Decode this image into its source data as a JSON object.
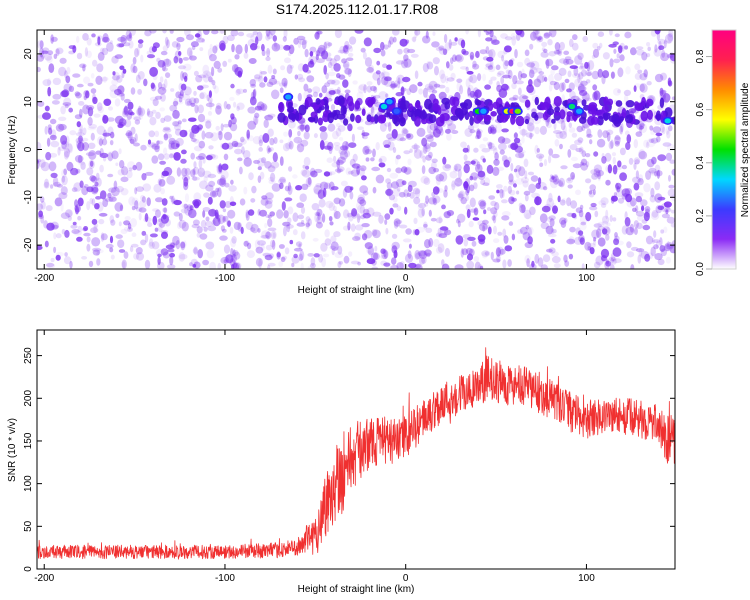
{
  "page": {
    "title": "S174.2025.112.01.17.R08"
  },
  "colors": {
    "heatmap_base": "#7b2ff0",
    "snr_line": "#f03030",
    "axis": "#000000",
    "background": "#ffffff",
    "colorbar_stops": [
      "#ffffff",
      "#8b2bf5",
      "#3b3bff",
      "#00d8ff",
      "#00e000",
      "#ffff00",
      "#ff8c00",
      "#ff2050",
      "#ff0080"
    ]
  },
  "chart_data": [
    {
      "type": "heatmap",
      "title": "S174.2025.112.01.17.R08",
      "xlabel": "Height of straight line (km)",
      "ylabel": "Frequency (Hz)",
      "xlim": [
        -204,
        149
      ],
      "ylim": [
        -25,
        25
      ],
      "xticks": [
        -200,
        -100,
        0,
        100
      ],
      "yticks": [
        -20,
        -10,
        0,
        10,
        20
      ],
      "colorbar": {
        "label": "Normalized spectral amplitude",
        "range": [
          0.0,
          0.9
        ],
        "ticks": [
          "0.0",
          "0.2",
          "0.4",
          "0.6",
          "0.8"
        ]
      },
      "features": {
        "ridge": {
          "x_from": -70,
          "x_to": 149,
          "frequency_hz": 8
        },
        "noise_amplitude": 0.1
      },
      "peaks": [
        {
          "x": -65,
          "y": 11,
          "amplitude": 0.3
        },
        {
          "x": -12,
          "y": 9,
          "amplitude": 0.35
        },
        {
          "x": -9,
          "y": 10,
          "amplitude": 0.3
        },
        {
          "x": -5,
          "y": 8,
          "amplitude": 0.25
        },
        {
          "x": 40,
          "y": 8,
          "amplitude": 0.45
        },
        {
          "x": 43,
          "y": 8,
          "amplitude": 0.3
        },
        {
          "x": 56,
          "y": 8,
          "amplitude": 0.55
        },
        {
          "x": 59,
          "y": 8,
          "amplitude": 0.8
        },
        {
          "x": 62,
          "y": 8,
          "amplitude": 0.5
        },
        {
          "x": 92,
          "y": 9,
          "amplitude": 0.4
        },
        {
          "x": 96,
          "y": 8,
          "amplitude": 0.3
        },
        {
          "x": 145,
          "y": 6,
          "amplitude": 0.35
        }
      ]
    },
    {
      "type": "line",
      "xlabel": "Height of straight line (km)",
      "ylabel": "SNR (10 * v/v)",
      "xlim": [
        -204,
        149
      ],
      "ylim": [
        0,
        280
      ],
      "xticks": [
        -200,
        -100,
        0,
        100
      ],
      "yticks": [
        0,
        50,
        100,
        150,
        200,
        250
      ],
      "series": [
        {
          "x": [
            -204,
            -150,
            -100,
            -70,
            -60,
            -50,
            -45,
            -40,
            -35,
            -30,
            -25,
            -20,
            -15,
            -10,
            -5,
            0,
            5,
            10,
            15,
            20,
            25,
            30,
            40,
            45,
            50,
            60,
            70,
            80,
            90,
            100,
            110,
            120,
            130,
            140,
            145,
            149
          ],
          "values": [
            20,
            20,
            20,
            22,
            26,
            40,
            70,
            100,
            115,
            130,
            140,
            148,
            150,
            150,
            150,
            155,
            165,
            175,
            185,
            195,
            200,
            205,
            210,
            225,
            220,
            215,
            210,
            200,
            185,
            175,
            180,
            180,
            175,
            170,
            150,
            150
          ],
          "spread": [
            8,
            8,
            8,
            9,
            10,
            25,
            40,
            50,
            50,
            40,
            35,
            30,
            30,
            28,
            25,
            25,
            24,
            24,
            24,
            24,
            24,
            24,
            25,
            25,
            25,
            25,
            25,
            24,
            24,
            22,
            22,
            22,
            22,
            22,
            30,
            30
          ]
        }
      ]
    }
  ]
}
